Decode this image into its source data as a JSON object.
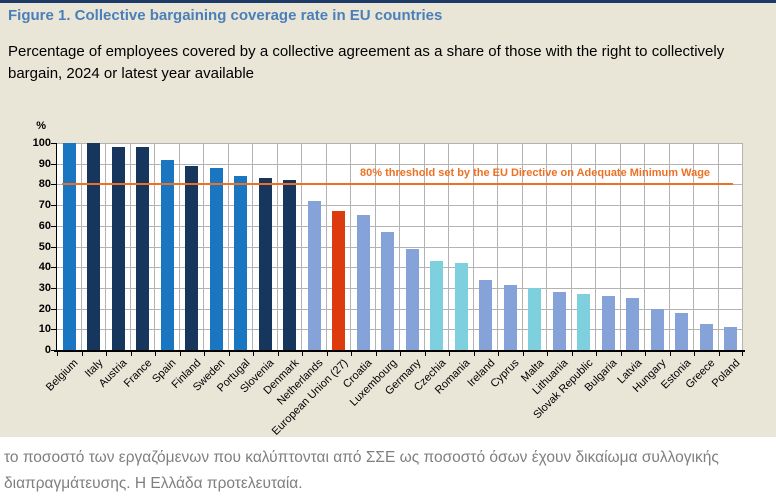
{
  "page": {
    "title": "Figure 1. Collective bargaining coverage rate in EU countries",
    "subtitle_lines": [
      "Percentage of employees covered by a collective agreement as a share of those with the right to collectively",
      "bargain, 2024 or latest year available"
    ],
    "footnote_lines": [
      "το ποσοστό των εργαζόμενων που καλύπτονται από ΣΣΕ ως ποσοστό όσων έχουν δικαίωμα συλλογικής",
      "διαπραγμάτευσης. Η Ελλάδα προτελευταία."
    ]
  },
  "colors": {
    "title_blue": "#4a7fba",
    "top_rule_navy": "#1e3a66",
    "background_beige": "#e9e6d8",
    "plot_background": "#ffffff",
    "gridline_gray": "#b3b3b3",
    "threshold_orange": "#ec7124",
    "footnote_gray": "#7f7f7f"
  },
  "chart_data": {
    "type": "bar",
    "title": "",
    "xlabel": "",
    "ylabel": "%",
    "ylim": [
      0,
      100
    ],
    "yticks": [
      0,
      10,
      20,
      30,
      40,
      50,
      60,
      70,
      80,
      90,
      100
    ],
    "grid": true,
    "legend": false,
    "categories": [
      "Belgium",
      "Italy",
      "Austria",
      "France",
      "Spain",
      "Finland",
      "Sweden",
      "Portugal",
      "Slovenia",
      "Denmark",
      "Netherlands",
      "European Union (27)",
      "Croatia",
      "Luxembourg",
      "Germany",
      "Czechia",
      "Romania",
      "Ireland",
      "Cyprus",
      "Malta",
      "Lithuania",
      "Slovak Republic",
      "Bulgaria",
      "Latvia",
      "Hungary",
      "Estonia",
      "Greece",
      "Poland"
    ],
    "values": [
      100,
      100,
      98,
      98,
      92,
      89,
      88,
      84,
      83,
      82,
      72,
      67,
      65,
      57,
      49,
      43,
      42,
      34,
      31.5,
      30,
      28,
      27,
      26,
      25,
      20,
      18,
      12.5,
      11
    ],
    "bar_groups": [
      "mid",
      "dark",
      "dark",
      "dark",
      "mid",
      "dark",
      "mid",
      "mid",
      "dark",
      "dark",
      "light",
      "eu",
      "light",
      "light",
      "light",
      "cyan",
      "cyan",
      "light",
      "light",
      "cyan",
      "light",
      "cyan",
      "light",
      "light",
      "light",
      "light",
      "light",
      "light"
    ],
    "palette": {
      "mid": "#1b76c1",
      "dark": "#17365d",
      "light": "#85a3d8",
      "cyan": "#7ed0df",
      "eu": "#dd3a0d"
    },
    "threshold": {
      "value": 80,
      "label": "80% threshold set by the EU Directive on Adequate Minimum Wage"
    }
  }
}
